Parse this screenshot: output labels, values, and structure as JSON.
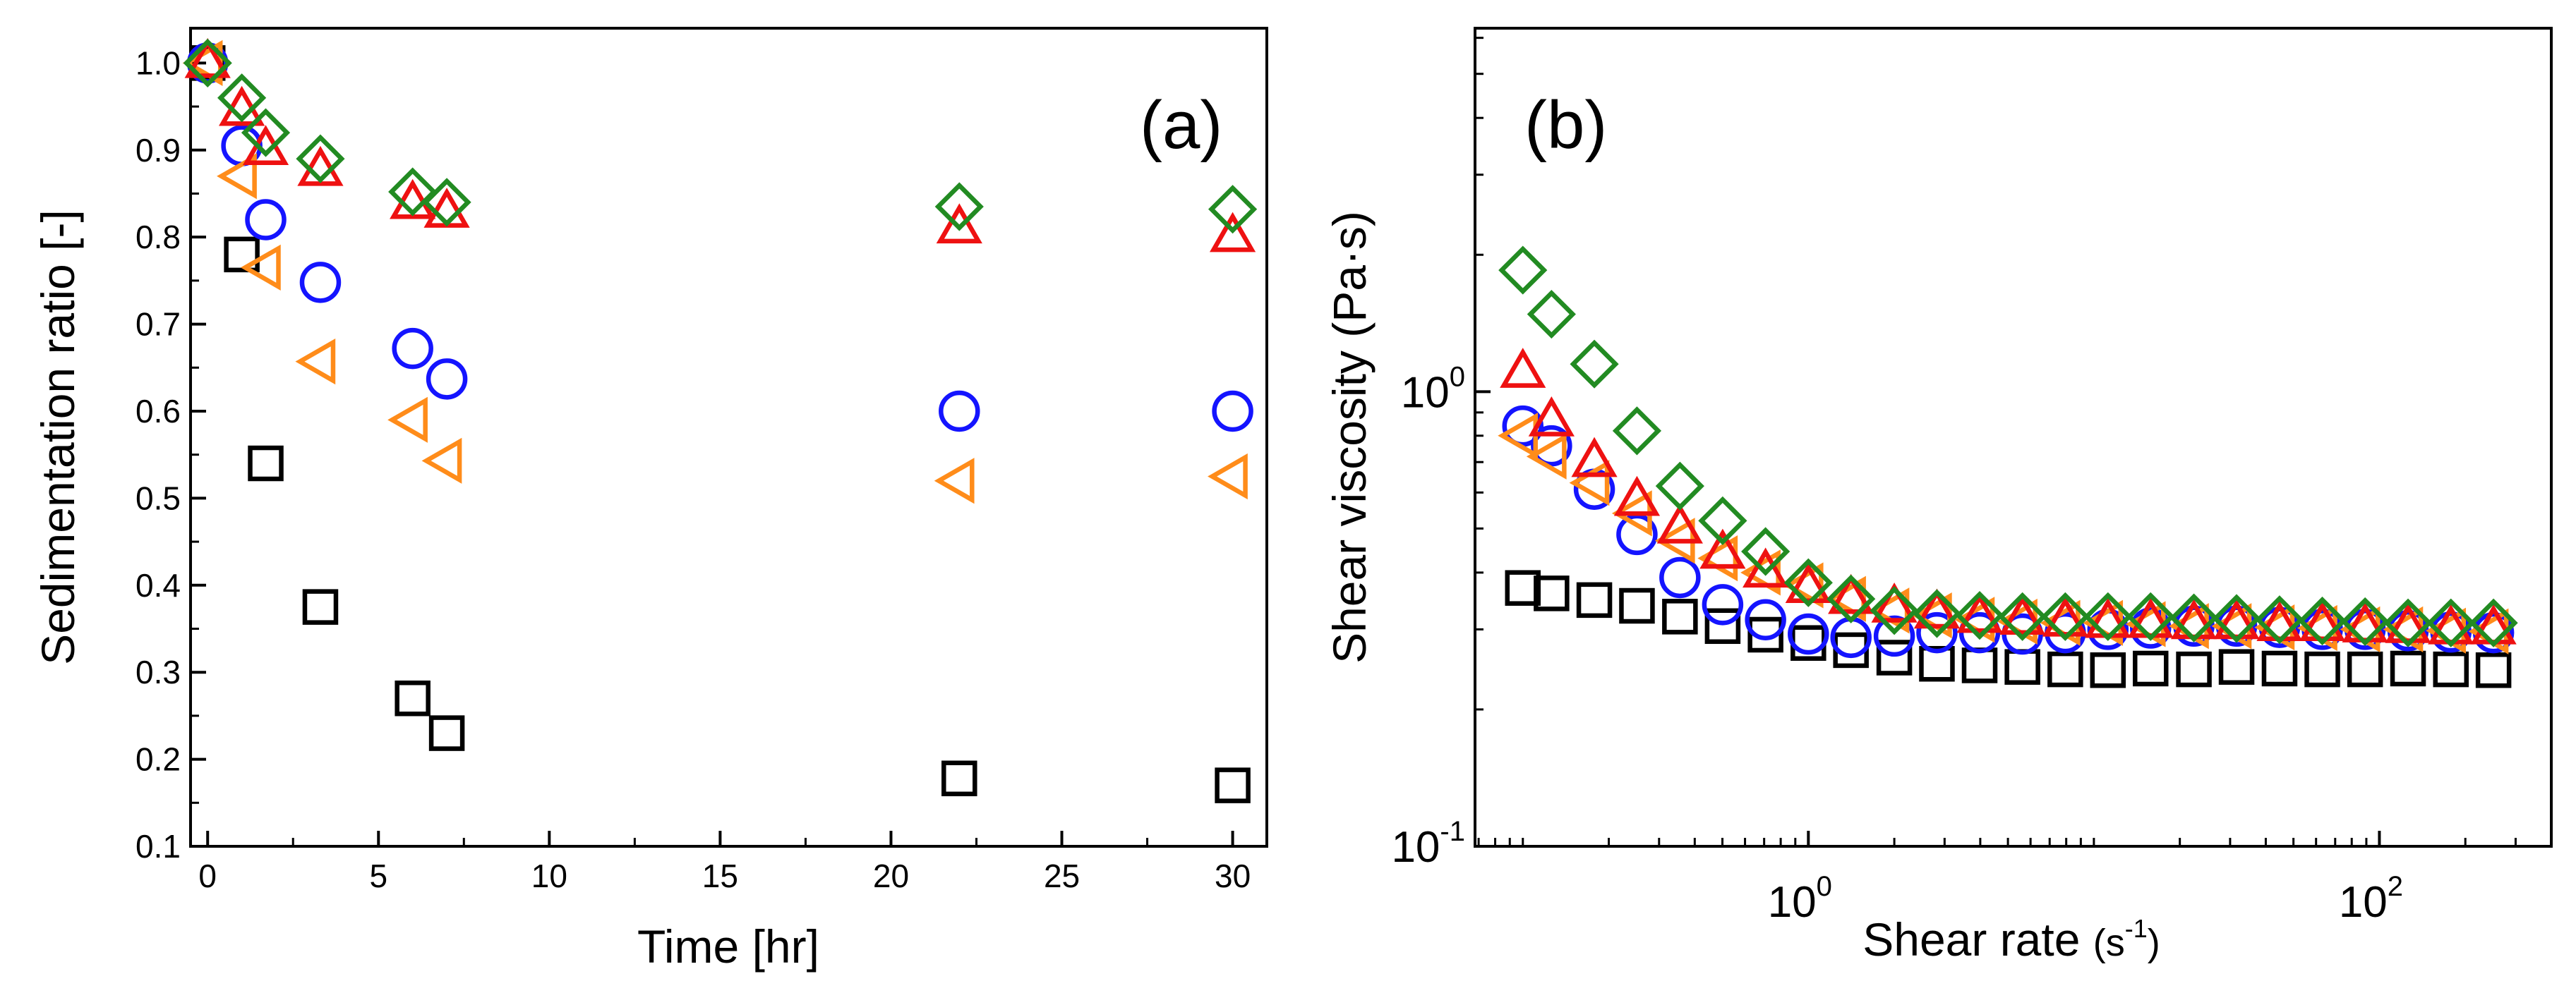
{
  "chart_data": [
    {
      "panel": "(a)",
      "type": "scatter",
      "xlabel": "Time [hr]",
      "ylabel": "Sedimentation ratio [-]",
      "xlim": [
        -0.5,
        31
      ],
      "ylim": [
        0.1,
        1.04
      ],
      "x_ticks": [
        "0",
        "5",
        "10",
        "15",
        "20",
        "25",
        "30"
      ],
      "x_tick_values": [
        0,
        5,
        10,
        15,
        20,
        25,
        30
      ],
      "y_ticks": [
        "0.1",
        "0.2",
        "0.3",
        "0.4",
        "0.5",
        "0.6",
        "0.7",
        "0.8",
        "0.9",
        "1.0"
      ],
      "y_tick_values": [
        0.1,
        0.2,
        0.3,
        0.4,
        0.5,
        0.6,
        0.7,
        0.8,
        0.9,
        1.0
      ],
      "series": [
        {
          "marker": "square",
          "color": "#000000",
          "points": [
            [
              0,
              1.0
            ],
            [
              1,
              0.78
            ],
            [
              1.7,
              0.54
            ],
            [
              3.3,
              0.375
            ],
            [
              6,
              0.27
            ],
            [
              7,
              0.23
            ],
            [
              22,
              0.178
            ],
            [
              30,
              0.17
            ]
          ]
        },
        {
          "marker": "circle",
          "color": "#1414ff",
          "points": [
            [
              0,
              1.0
            ],
            [
              1,
              0.905
            ],
            [
              1.7,
              0.82
            ],
            [
              3.3,
              0.748
            ],
            [
              6,
              0.672
            ],
            [
              7,
              0.637
            ],
            [
              22,
              0.6
            ],
            [
              30,
              0.6
            ]
          ]
        },
        {
          "marker": "triangle-left",
          "color": "#ff8c1a",
          "points": [
            [
              0,
              1.0
            ],
            [
              1,
              0.87
            ],
            [
              1.7,
              0.765
            ],
            [
              3.3,
              0.657
            ],
            [
              6,
              0.59
            ],
            [
              7,
              0.543
            ],
            [
              22,
              0.52
            ],
            [
              30,
              0.525
            ]
          ]
        },
        {
          "marker": "triangle-up",
          "color": "#ee1111",
          "points": [
            [
              0,
              1.0
            ],
            [
              1,
              0.945
            ],
            [
              1.7,
              0.9
            ],
            [
              3.3,
              0.876
            ],
            [
              6,
              0.838
            ],
            [
              7,
              0.828
            ],
            [
              22,
              0.81
            ],
            [
              30,
              0.8
            ]
          ]
        },
        {
          "marker": "diamond",
          "color": "#228b22",
          "points": [
            [
              0,
              1.0
            ],
            [
              1,
              0.96
            ],
            [
              1.7,
              0.92
            ],
            [
              3.3,
              0.89
            ],
            [
              6,
              0.852
            ],
            [
              7,
              0.84
            ],
            [
              22,
              0.835
            ],
            [
              30,
              0.832
            ]
          ]
        }
      ]
    },
    {
      "panel": "(b)",
      "type": "scatter",
      "xscale": "log",
      "yscale": "log",
      "xlabel_main": "Shear rate ",
      "xlabel_unit": "(s",
      "xlabel_unit_sup": "-1",
      "xlabel_unit_close": ")",
      "ylabel": "Shear viscosity (Pa·s)",
      "xlim": [
        0.068,
        400
      ],
      "ylim": [
        0.1,
        6.3
      ],
      "x_ticks": [
        {
          "base": "10",
          "exp": "0",
          "value": 1
        },
        {
          "base": "10",
          "exp": "2",
          "value": 100
        }
      ],
      "y_ticks": [
        {
          "base": "10",
          "exp": "0",
          "value": 1
        },
        {
          "base": "10",
          "exp": "-1",
          "value": 0.1
        }
      ],
      "x": [
        0.1,
        0.126,
        0.178,
        0.251,
        0.355,
        0.501,
        0.708,
        1,
        1.41,
        2,
        2.82,
        3.98,
        5.62,
        7.94,
        11.2,
        15.8,
        22.4,
        31.6,
        44.7,
        63.1,
        89.1,
        126,
        178,
        251
      ],
      "series": [
        {
          "marker": "square",
          "color": "#000000",
          "values": [
            0.37,
            0.36,
            0.348,
            0.338,
            0.32,
            0.305,
            0.292,
            0.28,
            0.27,
            0.26,
            0.252,
            0.25,
            0.248,
            0.245,
            0.244,
            0.246,
            0.245,
            0.248,
            0.246,
            0.245,
            0.245,
            0.246,
            0.245,
            0.244
          ]
        },
        {
          "marker": "circle",
          "color": "#1414ff",
          "values": [
            0.84,
            0.76,
            0.61,
            0.485,
            0.39,
            0.34,
            0.315,
            0.293,
            0.288,
            0.29,
            0.295,
            0.295,
            0.293,
            0.295,
            0.3,
            0.302,
            0.305,
            0.305,
            0.303,
            0.3,
            0.3,
            0.298,
            0.296,
            0.295
          ]
        },
        {
          "marker": "triangle-left",
          "color": "#ff8c1a",
          "values": [
            0.8,
            0.72,
            0.63,
            0.54,
            0.47,
            0.43,
            0.4,
            0.375,
            0.35,
            0.33,
            0.322,
            0.315,
            0.312,
            0.31,
            0.31,
            0.308,
            0.305,
            0.305,
            0.303,
            0.302,
            0.3,
            0.3,
            0.298,
            0.297
          ]
        },
        {
          "marker": "triangle-up",
          "color": "#ee1111",
          "values": [
            1.1,
            0.86,
            0.7,
            0.575,
            0.5,
            0.44,
            0.4,
            0.37,
            0.35,
            0.335,
            0.325,
            0.318,
            0.315,
            0.312,
            0.31,
            0.31,
            0.308,
            0.308,
            0.305,
            0.305,
            0.303,
            0.302,
            0.3,
            0.3
          ]
        },
        {
          "marker": "diamond",
          "color": "#228b22",
          "values": [
            1.85,
            1.48,
            1.15,
            0.82,
            0.62,
            0.52,
            0.445,
            0.38,
            0.35,
            0.33,
            0.325,
            0.322,
            0.32,
            0.32,
            0.32,
            0.32,
            0.318,
            0.317,
            0.315,
            0.313,
            0.312,
            0.31,
            0.31,
            0.31
          ]
        }
      ]
    }
  ]
}
